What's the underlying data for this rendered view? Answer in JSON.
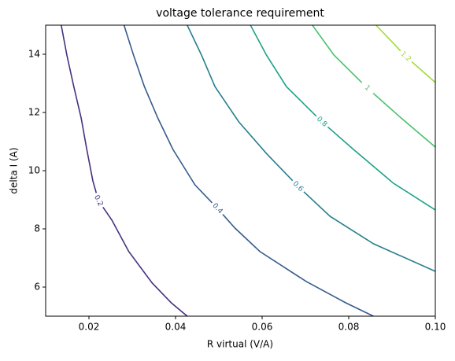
{
  "chart_data": {
    "type": "contour",
    "title": "voltage tolerance requirement",
    "xlabel": "R virtual (V/A)",
    "ylabel": "delta I (A)",
    "xlim": [
      0.01,
      0.1
    ],
    "ylim": [
      5,
      15
    ],
    "xticks": [
      0.02,
      0.04,
      0.06,
      0.08,
      {
        "value": 0.1,
        "label": "0.10"
      }
    ],
    "yticks": [
      6,
      8,
      10,
      12,
      14
    ],
    "series": [
      {
        "level": 0.2,
        "color": "#46307e",
        "x": [
          0.0136,
          0.0149,
          0.0165,
          0.0182,
          0.0195,
          0.0209,
          0.0222,
          0.0253,
          0.0292,
          0.0346,
          0.039,
          0.0427
        ],
        "y": [
          15.0,
          13.97,
          12.89,
          11.81,
          10.73,
          9.65,
          8.97,
          8.3,
          7.22,
          6.14,
          5.46,
          5.0
        ]
      },
      {
        "level": 0.4,
        "color": "#365c8d",
        "x": [
          0.0281,
          0.0303,
          0.0328,
          0.0359,
          0.0394,
          0.0445,
          0.0497,
          0.0537,
          0.0595,
          0.0702,
          0.0793,
          0.0857
        ],
        "y": [
          15.0,
          13.97,
          12.89,
          11.81,
          10.73,
          9.51,
          8.7,
          8.03,
          7.22,
          6.19,
          5.46,
          5.0
        ]
      },
      {
        "level": 0.6,
        "color": "#277f8e",
        "x": [
          0.0427,
          0.046,
          0.0491,
          0.0546,
          0.061,
          0.0683,
          0.0757,
          0.0857,
          0.1
        ],
        "y": [
          15.0,
          13.97,
          12.89,
          11.68,
          10.59,
          9.46,
          8.43,
          7.49,
          6.54
        ]
      },
      {
        "level": 0.8,
        "color": "#1fa187",
        "x": [
          0.0573,
          0.061,
          0.0656,
          0.0738,
          0.0811,
          0.0903,
          0.1
        ],
        "y": [
          15.0,
          13.97,
          12.89,
          11.68,
          10.73,
          9.57,
          8.65
        ]
      },
      {
        "level": 1.0,
        "color": "#4ac16d",
        "x": [
          0.0716,
          0.0766,
          0.0843,
          0.0921,
          0.1
        ],
        "y": [
          15.0,
          13.97,
          12.84,
          11.81,
          10.81
        ]
      },
      {
        "level": 1.2,
        "color": "#a0da39",
        "x": [
          0.0863,
          0.0903,
          0.0932,
          0.1
        ],
        "y": [
          15.0,
          14.38,
          13.92,
          13.03
        ]
      }
    ]
  }
}
